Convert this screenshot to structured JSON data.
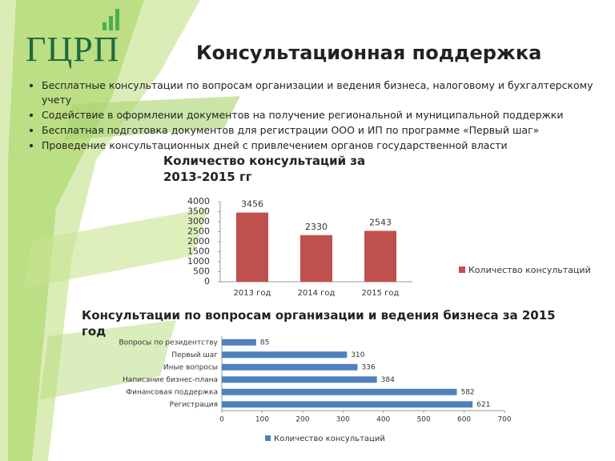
{
  "header": {
    "logo": "ГЦРП",
    "title": "Консультационная поддержка"
  },
  "bullets": [
    "Бесплатные консультации по вопросам организации и ведения бизнеса, налоговому и бухгалтерскому учету",
    "Содействие в оформлении документов на получение региональной и муниципальной поддержки",
    "Бесплатная подготовка документов для регистрации ООО и ИП по программе «Первый шаг»",
    "Проведение консультационных дней с привлечением органов государственной власти"
  ],
  "chart_data": [
    {
      "type": "bar",
      "title": "Количество консультаций за 2013-2015 гг",
      "categories": [
        "2013 год",
        "2014 год",
        "2015 год"
      ],
      "series": [
        {
          "name": "Количество консультаций",
          "color": "#c0504d",
          "values": [
            3456,
            2330,
            2543
          ]
        }
      ],
      "ylim": [
        0,
        4000
      ],
      "yticks": [
        0,
        500,
        1000,
        1500,
        2000,
        2500,
        3000,
        3500,
        4000
      ],
      "grid": false,
      "legend": "right"
    },
    {
      "type": "barh",
      "title": "Консультации по вопросам организации и ведения бизнеса за 2015 год",
      "categories": [
        "Вопросы по резидентству",
        "Первый шаг",
        "Иные вопросы",
        "Написание бизнес-плана",
        "Финансовая поддержка",
        "Регистрация"
      ],
      "series": [
        {
          "name": "Количество консультаций",
          "color": "#4f81bd",
          "values": [
            85,
            310,
            336,
            384,
            582,
            621
          ]
        }
      ],
      "xlim": [
        0,
        700
      ],
      "xticks": [
        0,
        100,
        200,
        300,
        400,
        500,
        600,
        700
      ],
      "grid": false,
      "legend": "bottom"
    }
  ]
}
